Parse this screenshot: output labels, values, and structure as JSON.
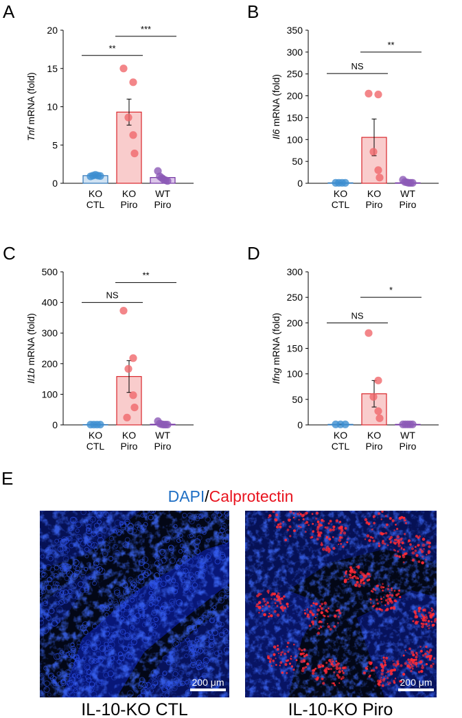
{
  "colors": {
    "ko_ctl_fill": "#cfe2f3",
    "ko_ctl_stroke": "#2e75b6",
    "ko_ctl_dot": "#3d8fd1",
    "ko_piro_fill": "#f9cccc",
    "ko_piro_stroke": "#d9262b",
    "ko_piro_dot": "#f0686b",
    "wt_piro_fill": "#dcc6ea",
    "wt_piro_stroke": "#7030a0",
    "wt_piro_dot": "#8c5ab6",
    "dapi": "#1f6fc4",
    "calprotectin": "#e8131e"
  },
  "chart_data": [
    {
      "panel": "A",
      "type": "bar",
      "categories": [
        [
          "KO",
          "CTL"
        ],
        [
          "KO",
          "Piro"
        ],
        [
          "WT",
          "Piro"
        ]
      ],
      "ylabel_italic": "Tnf",
      "ylabel_rest": " mRNA (fold)",
      "ylim": [
        0,
        20
      ],
      "yticks": [
        "0",
        "5",
        "10",
        "15",
        "20"
      ],
      "values": [
        1.0,
        9.3,
        0.75
      ],
      "errors": [
        0.1,
        1.7,
        0.2
      ],
      "points": [
        [
          0.9,
          1.0,
          1.1,
          1.0,
          0.95
        ],
        [
          15.0,
          13.2,
          8.6,
          6.3,
          3.9
        ],
        [
          1.6,
          0.9,
          0.7,
          0.5,
          0.4,
          0.3
        ]
      ],
      "significance": [
        {
          "from": 0,
          "to": 1,
          "label": "**",
          "y": 16.7
        },
        {
          "from": 1,
          "to": 2,
          "label": "***",
          "y": 19.2
        }
      ]
    },
    {
      "panel": "B",
      "type": "bar",
      "categories": [
        [
          "KO",
          "CTL"
        ],
        [
          "KO",
          "Piro"
        ],
        [
          "WT",
          "Piro"
        ]
      ],
      "ylabel_italic": "Il6",
      "ylabel_rest": " mRNA (fold)",
      "ylim": [
        0,
        350
      ],
      "yticks": [
        "0",
        "50",
        "100",
        "150",
        "200",
        "250",
        "300",
        "350"
      ],
      "values": [
        1,
        105,
        1
      ],
      "errors": [
        0.5,
        42,
        0.5
      ],
      "points": [
        [
          1,
          1,
          1,
          1
        ],
        [
          205,
          203,
          72,
          30,
          13
        ],
        [
          8,
          3,
          2,
          1,
          1,
          1
        ]
      ],
      "significance": [
        {
          "from": 0,
          "to": 1,
          "label": "NS",
          "y": 251
        },
        {
          "from": 1,
          "to": 2,
          "label": "**",
          "y": 300
        }
      ]
    },
    {
      "panel": "C",
      "type": "bar",
      "categories": [
        [
          "KO",
          "CTL"
        ],
        [
          "KO",
          "Piro"
        ],
        [
          "WT",
          "Piro"
        ]
      ],
      "ylabel_italic": "Il1b",
      "ylabel_rest": " mRNA (fold)",
      "ylim": [
        0,
        500
      ],
      "yticks": [
        "0",
        "100",
        "200",
        "300",
        "400",
        "500"
      ],
      "values": [
        1,
        158,
        2
      ],
      "errors": [
        0.5,
        52,
        1
      ],
      "points": [
        [
          1,
          1,
          1,
          1
        ],
        [
          373,
          218,
          183,
          97,
          57,
          24
        ],
        [
          12,
          4,
          2,
          1,
          1,
          1
        ]
      ],
      "significance": [
        {
          "from": 0,
          "to": 1,
          "label": "NS",
          "y": 400
        },
        {
          "from": 1,
          "to": 2,
          "label": "**",
          "y": 465
        }
      ]
    },
    {
      "panel": "D",
      "type": "bar",
      "categories": [
        [
          "KO",
          "CTL"
        ],
        [
          "KO",
          "Piro"
        ],
        [
          "WT",
          "Piro"
        ]
      ],
      "ylabel_italic": "Ifng",
      "ylabel_rest": " mRNA (fold)",
      "ylim": [
        0,
        300
      ],
      "yticks": [
        "0",
        "50",
        "100",
        "150",
        "200",
        "250",
        "300"
      ],
      "values": [
        1,
        61,
        1
      ],
      "errors": [
        0.5,
        26,
        0.5
      ],
      "points": [
        [
          1,
          1,
          1
        ],
        [
          180,
          87,
          55,
          27,
          13
        ],
        [
          1,
          1,
          1,
          1,
          1
        ]
      ],
      "significance": [
        {
          "from": 0,
          "to": 1,
          "label": "NS",
          "y": 200
        },
        {
          "from": 1,
          "to": 2,
          "label": "*",
          "y": 250
        }
      ]
    }
  ],
  "panelE": {
    "letter": "E",
    "legend_dapi": "DAPI",
    "legend_sep": "/",
    "legend_calprotectin": "Calprotectin",
    "images": [
      {
        "caption": "IL-10-KO CTL",
        "scale_bar": "200 μm"
      },
      {
        "caption": "IL-10-KO Piro",
        "scale_bar": "200 μm"
      }
    ]
  }
}
